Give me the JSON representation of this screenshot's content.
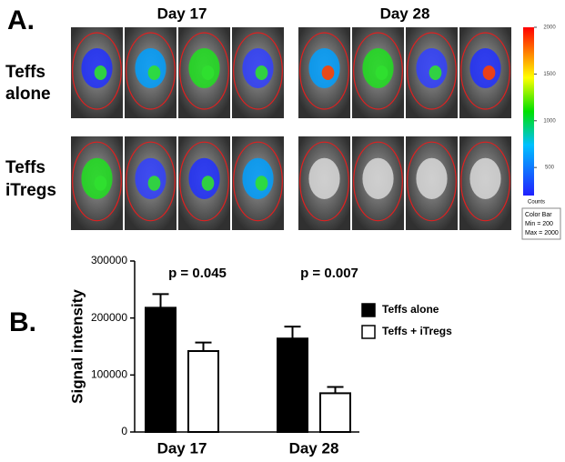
{
  "panel_a": {
    "label": "A.",
    "columns": [
      "Day 17",
      "Day 28"
    ],
    "rows": [
      [
        "Teffs",
        "alone"
      ],
      [
        "Teffs",
        "iTregs"
      ]
    ],
    "colorbar": {
      "ticks": [
        2000,
        1500,
        1000,
        500
      ],
      "unit": "Counts",
      "title": "Color Bar",
      "min": {
        "value": 200,
        "label": "Min = 200"
      },
      "max": {
        "value": 2000,
        "label": "Max = 2000"
      }
    }
  },
  "chart_data": {
    "type": "bar",
    "label": "B.",
    "ylabel": "Signal intensity",
    "categories": [
      "Day 17",
      "Day 28"
    ],
    "series": [
      {
        "name": "Teffs alone",
        "color": "#000000",
        "values": [
          218000,
          164000
        ],
        "errors": [
          24000,
          21000
        ]
      },
      {
        "name": "Teffs + iTregs",
        "color": "#ffffff",
        "values": [
          142000,
          68000
        ],
        "errors": [
          15000,
          11000
        ]
      }
    ],
    "annotations": [
      "p = 0.045",
      "p = 0.007"
    ],
    "ylim": [
      0,
      300000
    ],
    "yticks": [
      0,
      100000,
      200000,
      300000
    ],
    "legend": "right"
  }
}
